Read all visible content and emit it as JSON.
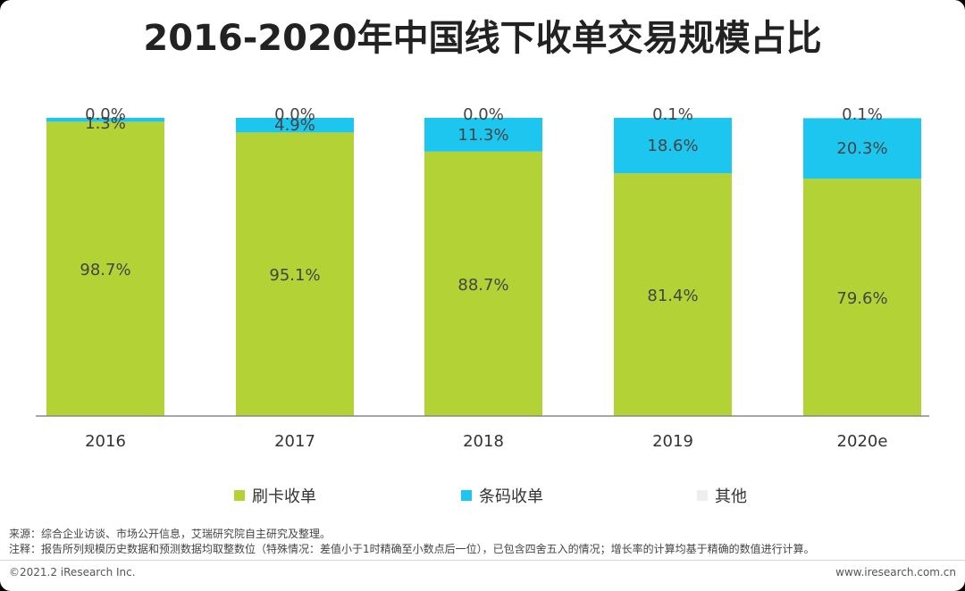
{
  "title": "2016-2020年中国线下收单交易规模占比",
  "chart_data": {
    "type": "bar",
    "stacked": true,
    "categories": [
      "2016",
      "2017",
      "2018",
      "2019",
      "2020e"
    ],
    "series": [
      {
        "name": "刷卡收单",
        "color": "#b2d235",
        "values": [
          98.7,
          95.1,
          88.7,
          81.4,
          79.6
        ],
        "labels": [
          "98.7%",
          "95.1%",
          "88.7%",
          "81.4%",
          "79.6%"
        ]
      },
      {
        "name": "条码收单",
        "color": "#1dc6ef",
        "values": [
          1.3,
          4.9,
          11.3,
          18.6,
          20.3
        ],
        "labels": [
          "1.3%",
          "4.9%",
          "11.3%",
          "18.6%",
          "20.3%"
        ]
      },
      {
        "name": "其他",
        "color": "#eeeeee",
        "values": [
          0.0,
          0.0,
          0.0,
          0.1,
          0.1
        ],
        "labels": [
          "0.0%",
          "0.0%",
          "0.0%",
          "0.1%",
          "0.1%"
        ]
      }
    ],
    "ylim": [
      0,
      100
    ],
    "legend_position": "bottom",
    "grid": false
  },
  "notes": {
    "source": "来源：综合企业访谈、市场公开信息，艾瑞研究院自主研究及整理。",
    "remark": "注释：报告所列规模历史数据和预测数据均取整数位（特殊情况：差值小于1时精确至小数点后一位），已包含四舍五入的情况；增长率的计算均基于精确的数值进行计算。"
  },
  "footer": {
    "copyright": "©2021.2 iResearch Inc.",
    "website": "www.iresearch.com.cn"
  }
}
